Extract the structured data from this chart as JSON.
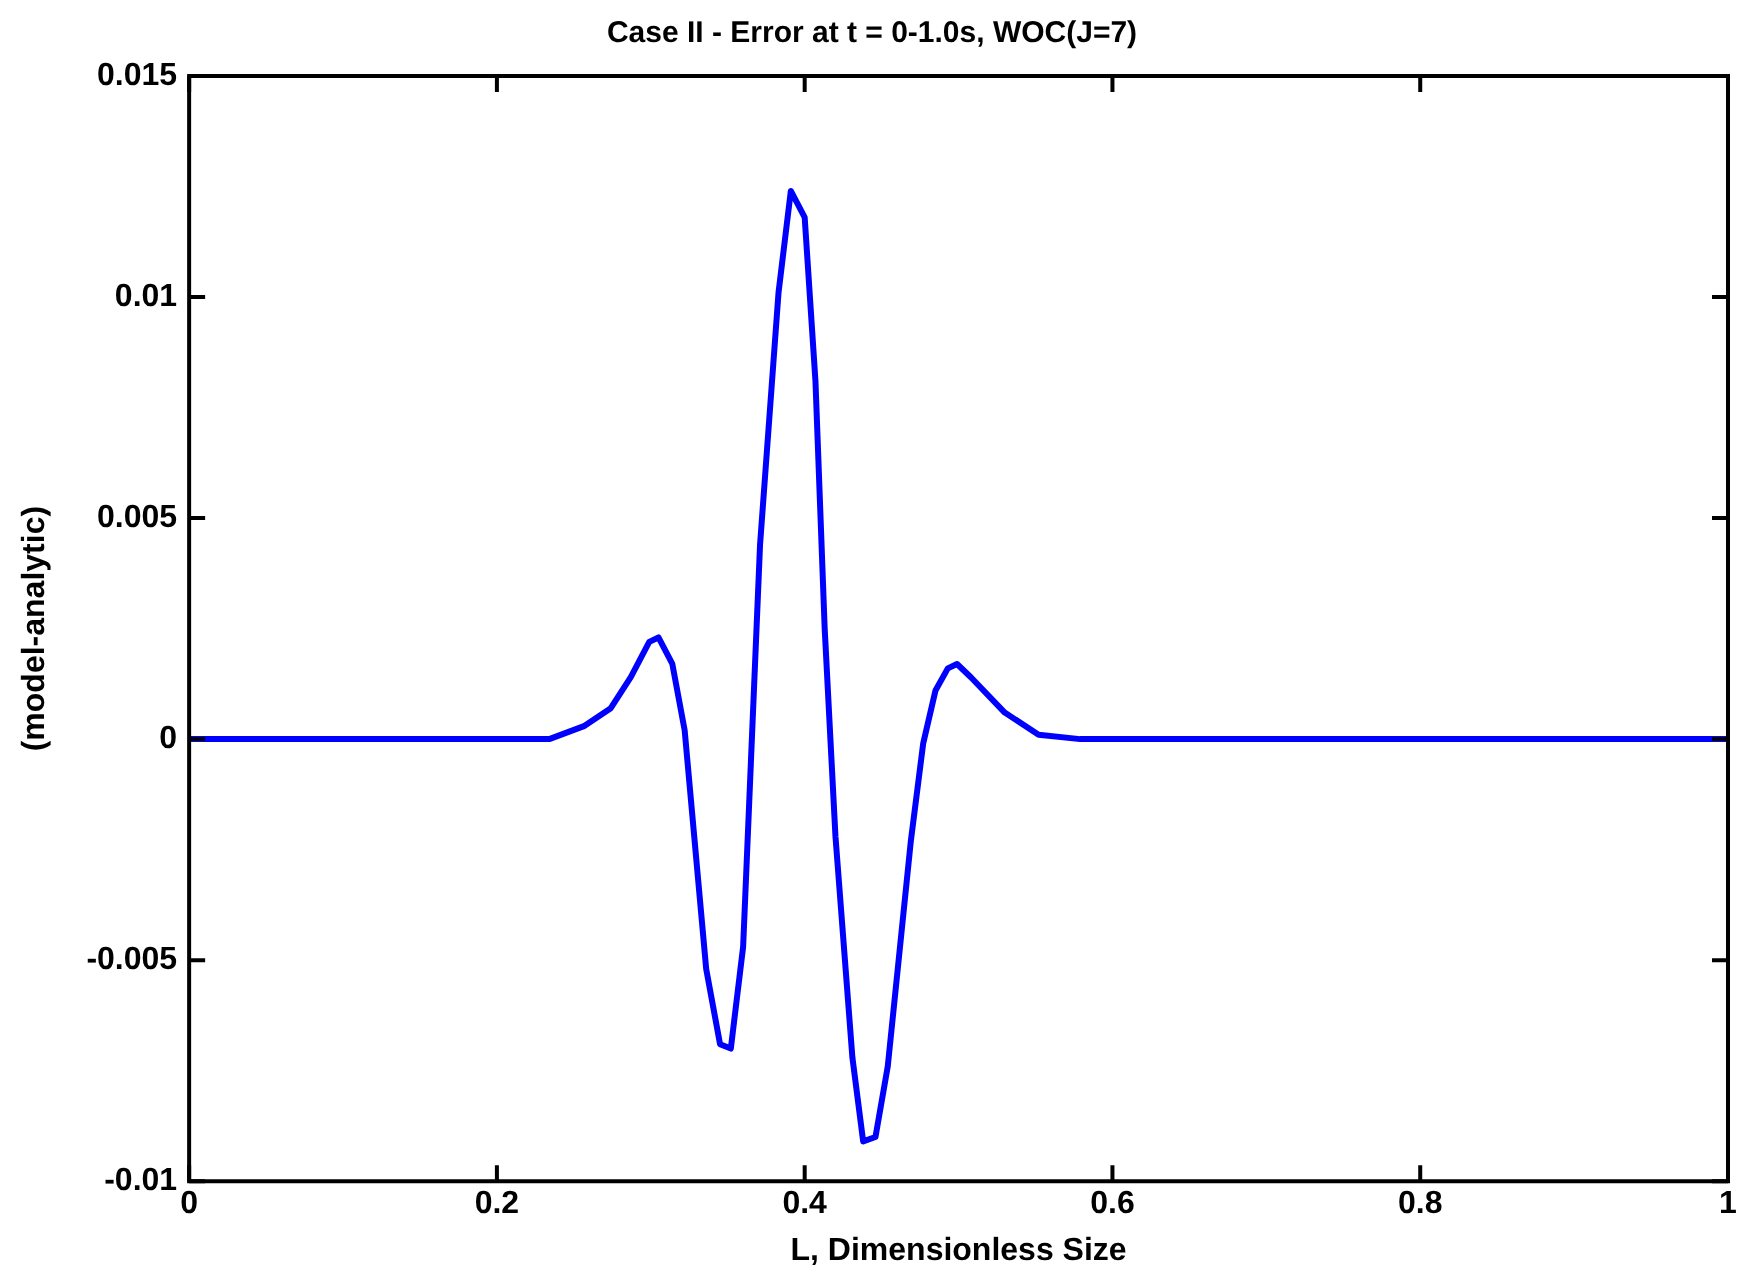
{
  "chart_data": {
    "type": "line",
    "title": "Case II - Error at t = 0-1.0s, WOC(J=7)",
    "xlabel": "L, Dimensionless Size",
    "ylabel": "(model-analytic)",
    "x": [
      0,
      0.234,
      0.257,
      0.274,
      0.287,
      0.299,
      0.305,
      0.314,
      0.322,
      0.336,
      0.345,
      0.352,
      0.36,
      0.371,
      0.383,
      0.391,
      0.4,
      0.407,
      0.413,
      0.42,
      0.431,
      0.438,
      0.446,
      0.454,
      0.469,
      0.477,
      0.485,
      0.493,
      0.499,
      0.508,
      0.53,
      0.552,
      0.579,
      1
    ],
    "series": [
      {
        "color": "#0000ff",
        "values": [
          0,
          0,
          0.0003,
          0.0007,
          0.0014,
          0.0022,
          0.0023,
          0.0017,
          0.0002,
          -0.0052,
          -0.0069,
          -0.007,
          -0.0047,
          0.0044,
          0.0101,
          0.0124,
          0.0118,
          0.0081,
          0.0025,
          -0.0022,
          -0.0072,
          -0.0091,
          -0.009,
          -0.0074,
          -0.0023,
          -0.0001,
          0.0011,
          0.0016,
          0.0017,
          0.0014,
          0.0006,
          0.0001,
          0,
          0
        ]
      }
    ],
    "xlim": [
      0,
      1
    ],
    "xticks": [
      0,
      0.2,
      0.4,
      0.6,
      0.8,
      1
    ],
    "ylim": [
      -0.01,
      0.015
    ],
    "yticks": [
      -0.01,
      -0.005,
      0,
      0.005,
      0.01,
      0.015
    ],
    "marker": "none",
    "line_style": "solid",
    "legend": false
  }
}
